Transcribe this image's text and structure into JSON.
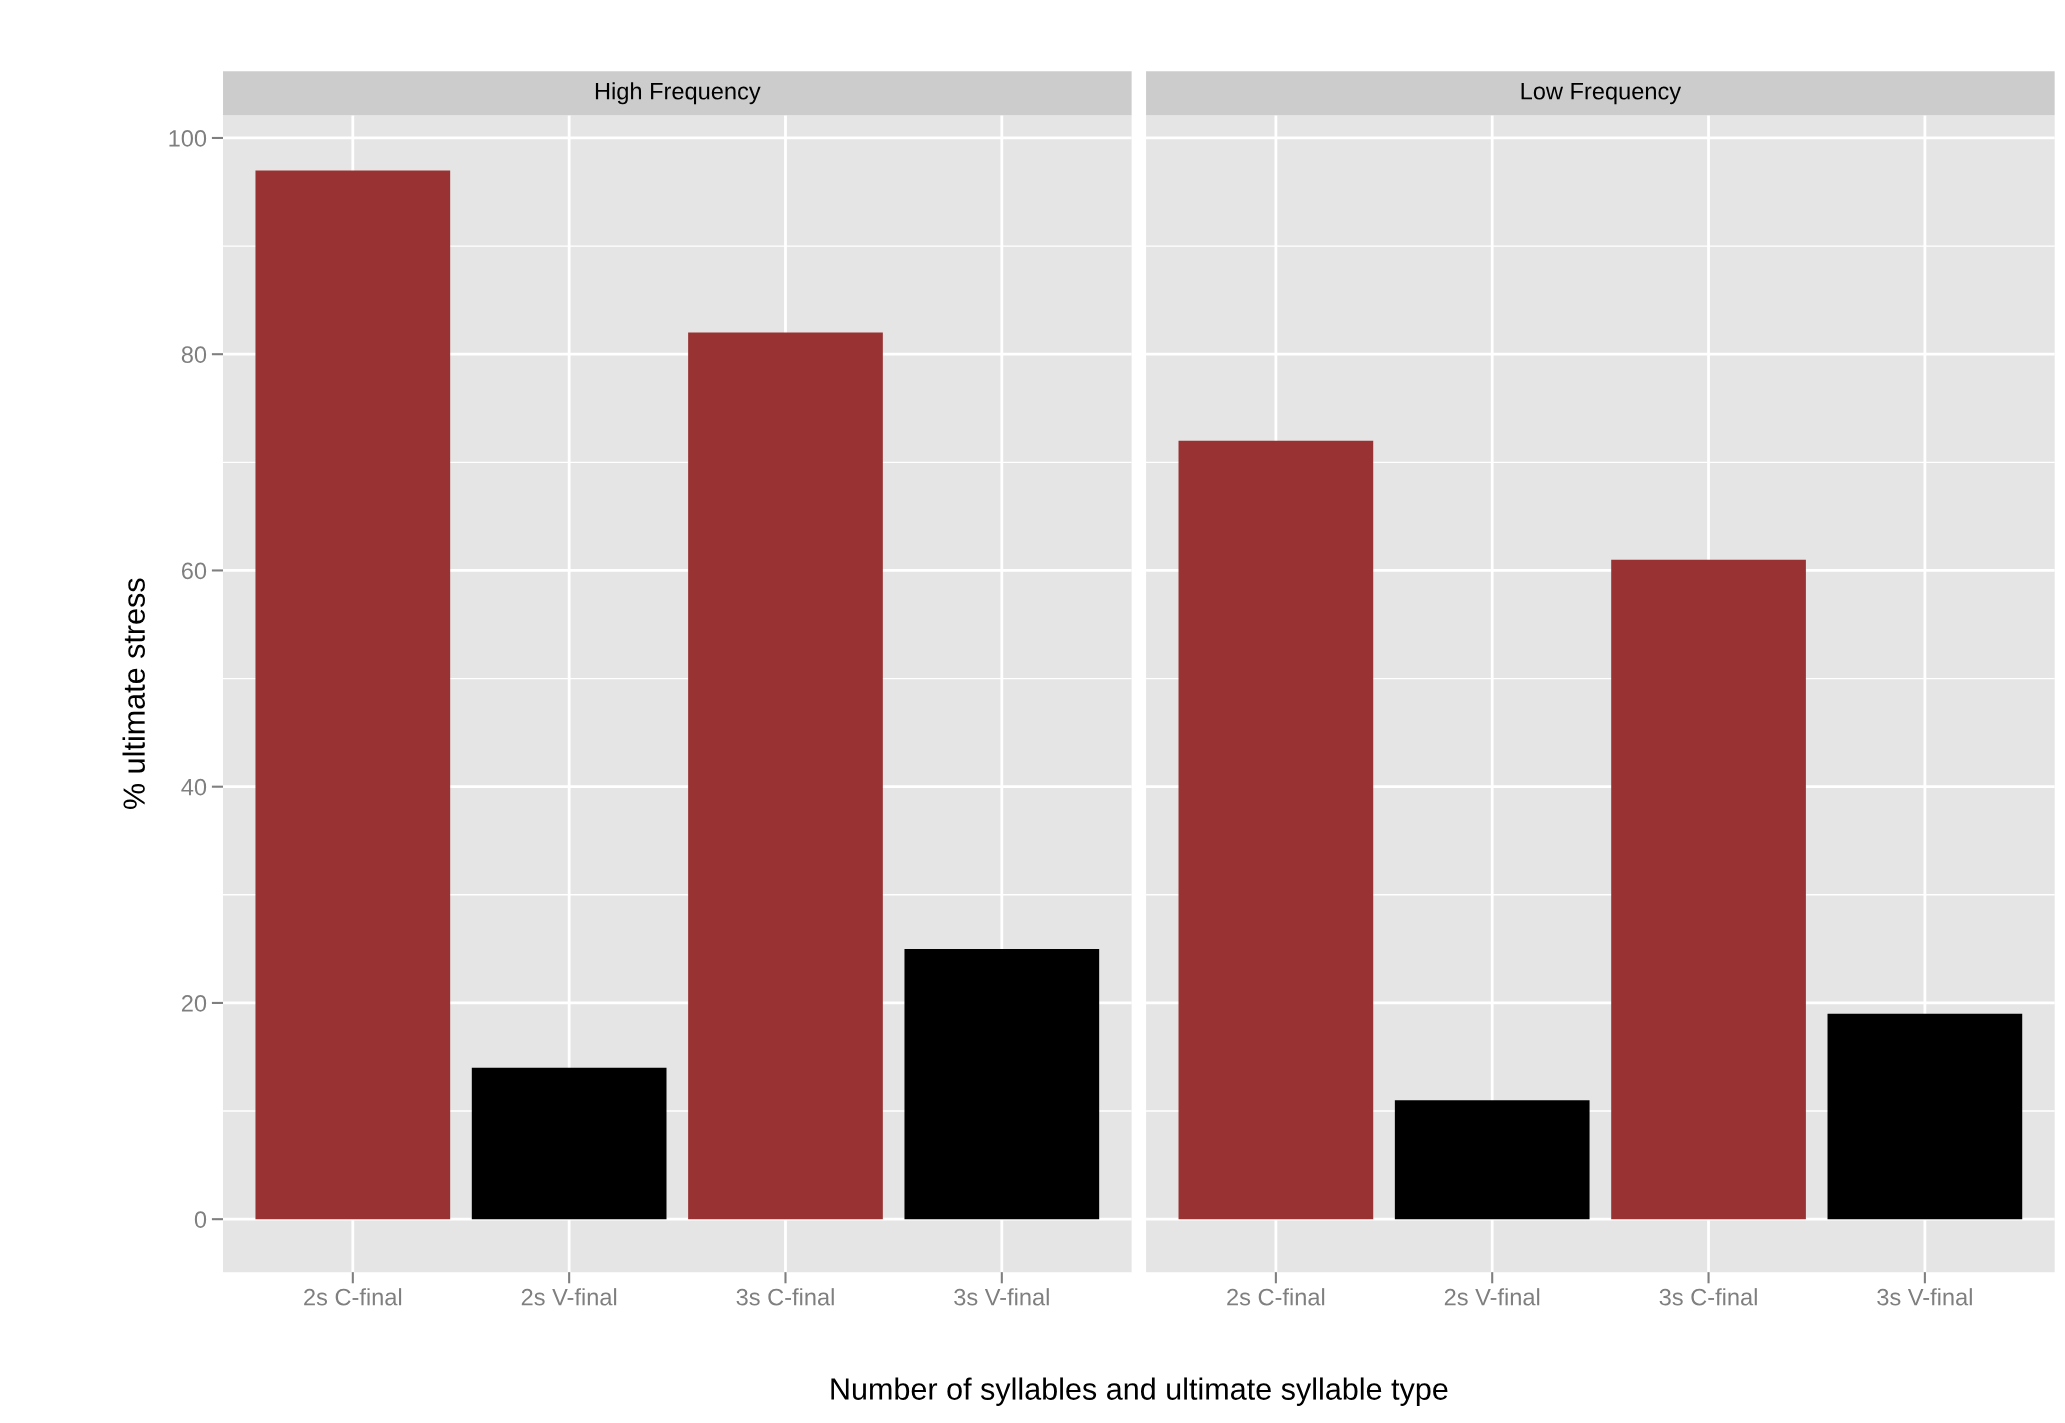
{
  "chart_data": [
    {
      "type": "bar",
      "title": "High Frequency",
      "ylabel": "% ultimate stress",
      "xlabel": "Number of syllables and ultimate syllable type",
      "categories": [
        "2s C-final",
        "2s V-final",
        "3s C-final",
        "3s V-final"
      ],
      "values": [
        97,
        14,
        82,
        25
      ],
      "colors": [
        "#993333",
        "#000000",
        "#993333",
        "#000000"
      ],
      "ylim": [
        -4.9,
        102.1
      ],
      "yticks": [
        0,
        20,
        40,
        60,
        80,
        100
      ],
      "grid": true
    },
    {
      "type": "bar",
      "title": "Low Frequency",
      "categories": [
        "2s C-final",
        "2s V-final",
        "3s C-final",
        "3s V-final"
      ],
      "values": [
        72,
        11,
        61,
        19
      ],
      "colors": [
        "#993333",
        "#000000",
        "#993333",
        "#000000"
      ],
      "ylim": [
        -4.9,
        102.1
      ],
      "yticks": [
        0,
        20,
        40,
        60,
        80,
        100
      ],
      "grid": true,
      "tick_labels": "x"
    }
  ]
}
